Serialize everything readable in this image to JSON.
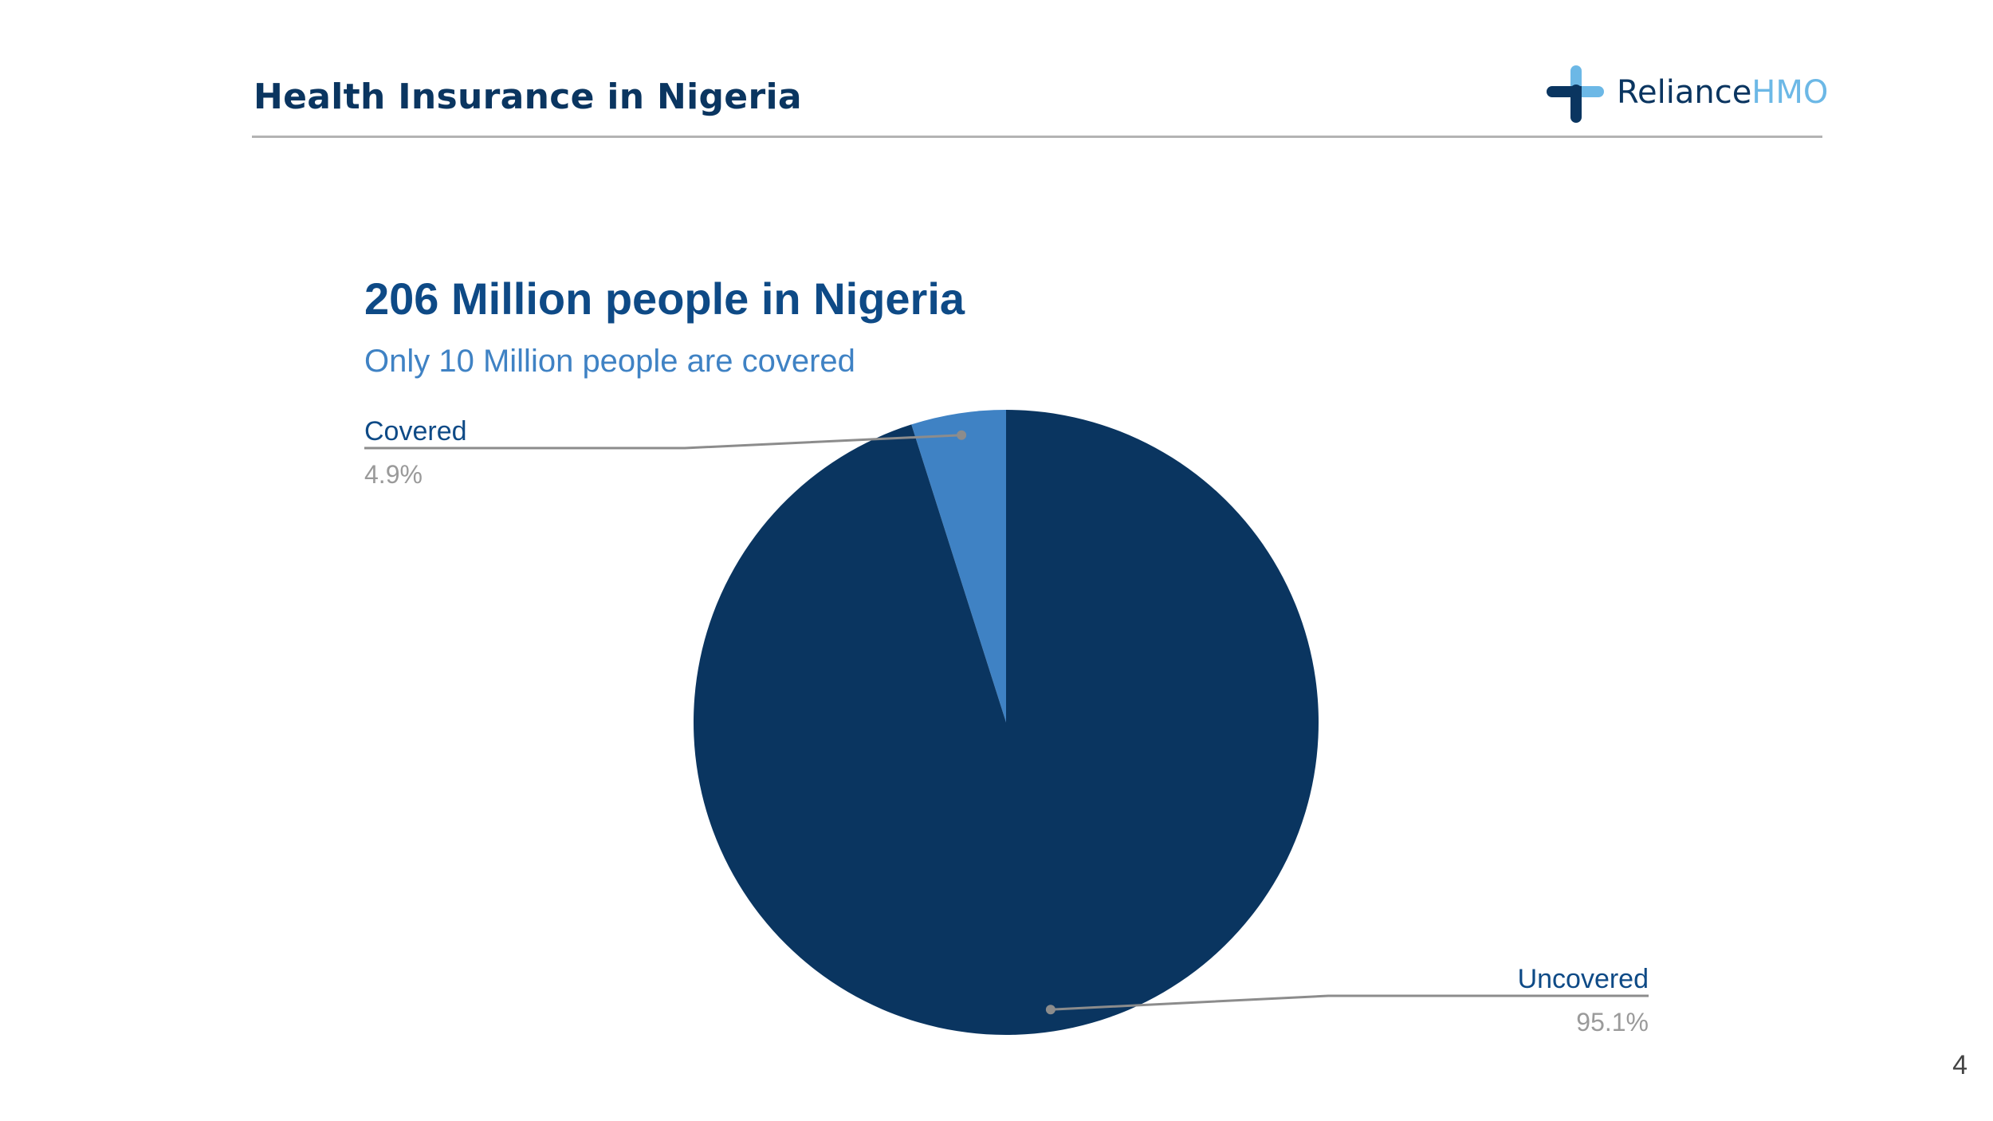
{
  "slide": {
    "title": "Health Insurance in Nigeria",
    "page_number": "4"
  },
  "logo": {
    "name_part1": "Reliance",
    "name_part2": "HMO",
    "icon": "plus-cross-icon",
    "colors": {
      "dark": "#0a3560",
      "light": "#6cb8e6"
    }
  },
  "chart_data": {
    "type": "pie",
    "title": "206 Million people in Nigeria",
    "subtitle": "Only 10 Million people are covered",
    "categories": [
      "Covered",
      "Uncovered"
    ],
    "values": [
      4.9,
      95.1
    ],
    "value_labels": [
      "4.9%",
      "95.1%"
    ],
    "colors": [
      "#3f82c4",
      "#0a3560"
    ],
    "start_angle": "12 o'clock, slices drawn counter-clockwise (Covered first)",
    "legend": "callout labels outside slices",
    "colors_text": {
      "title": "#0e4a86",
      "subtitle": "#3f82c4",
      "label": "#0e4a86",
      "value": "#9a9a9a",
      "leader": "#8c8c8c"
    }
  }
}
